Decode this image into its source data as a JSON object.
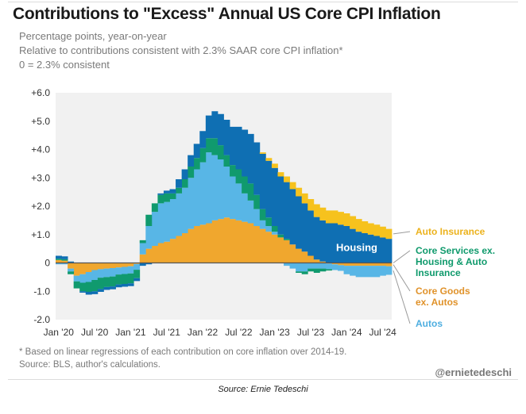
{
  "title": "Contributions to \"Excess\" Annual US Core CPI Inflation",
  "subtitle_lines": [
    "Percentage points, year-on-year",
    "Relative to contributions consistent with 2.3% SAAR core CPI inflation*",
    "0 = 2.3% consistent"
  ],
  "footnotes": [
    "* Based on linear regressions of each contribution on core inflation over 2014-19.",
    "Source: BLS, author's calculations."
  ],
  "handle": "@ernietedeschi",
  "source_caption": "Source: Ernie Tedeschi",
  "colors": {
    "plot_bg": "#f1f1f1",
    "housing": "#0f6fb3",
    "core_services": "#109a6e",
    "core_goods": "#f0a72e",
    "autos": "#58b6e6",
    "auto_insurance": "#f6c21d",
    "housing_label_text": "#ffffff",
    "core_goods_label_text": "#e0922a",
    "autos_label_text": "#4eaee0",
    "auto_insurance_label_text": "#ecb21c",
    "core_services_label_text": "#0f9a6c"
  },
  "chart_data": {
    "type": "area",
    "stacked": true,
    "x": [
      "2020-01",
      "2020-02",
      "2020-03",
      "2020-04",
      "2020-05",
      "2020-06",
      "2020-07",
      "2020-08",
      "2020-09",
      "2020-10",
      "2020-11",
      "2020-12",
      "2021-01",
      "2021-02",
      "2021-03",
      "2021-04",
      "2021-05",
      "2021-06",
      "2021-07",
      "2021-08",
      "2021-09",
      "2021-10",
      "2021-11",
      "2021-12",
      "2022-01",
      "2022-02",
      "2022-03",
      "2022-04",
      "2022-05",
      "2022-06",
      "2022-07",
      "2022-08",
      "2022-09",
      "2022-10",
      "2022-11",
      "2022-12",
      "2023-01",
      "2023-02",
      "2023-03",
      "2023-04",
      "2023-05",
      "2023-06",
      "2023-07",
      "2023-08",
      "2023-09",
      "2023-10",
      "2023-11",
      "2023-12",
      "2024-01",
      "2024-02",
      "2024-03",
      "2024-04",
      "2024-05",
      "2024-06",
      "2024-07",
      "2024-08"
    ],
    "xtick_labels": [
      "Jan '20",
      "Jul '20",
      "Jan '21",
      "Jul '21",
      "Jan '22",
      "Jul '22",
      "Jan '23",
      "Jul '23",
      "Jan '24",
      "Jul '24"
    ],
    "ylim": [
      -2.0,
      6.0
    ],
    "yticks": [
      -2.0,
      -1.0,
      0,
      1.0,
      2.0,
      3.0,
      4.0,
      5.0,
      6.0
    ],
    "ytick_labels": [
      "-2.0",
      "-1.0",
      "0",
      "+1.0",
      "+2.0",
      "+3.0",
      "+4.0",
      "+5.0",
      "+6.0"
    ],
    "grid": false,
    "legend": "right",
    "series": [
      {
        "key": "core_goods",
        "name": "Core Goods ex. Autos",
        "label_lines": [
          "Core Goods",
          "ex. Autos"
        ],
        "values": [
          0.1,
          0.08,
          -0.2,
          -0.45,
          -0.4,
          -0.32,
          -0.25,
          -0.22,
          -0.2,
          -0.18,
          -0.16,
          -0.14,
          -0.12,
          -0.04,
          0.3,
          0.5,
          0.6,
          0.7,
          0.75,
          0.85,
          0.95,
          1.05,
          1.2,
          1.3,
          1.35,
          1.4,
          1.5,
          1.55,
          1.6,
          1.55,
          1.5,
          1.45,
          1.4,
          1.3,
          1.2,
          1.1,
          1.0,
          0.9,
          0.8,
          0.65,
          0.5,
          0.4,
          0.25,
          0.12,
          0.05,
          -0.02,
          -0.05,
          -0.08,
          -0.1,
          -0.1,
          -0.1,
          -0.1,
          -0.1,
          -0.1,
          -0.1,
          -0.12
        ]
      },
      {
        "key": "autos",
        "name": "Autos",
        "label_lines": [
          "Autos"
        ],
        "values": [
          -0.05,
          -0.05,
          -0.1,
          -0.2,
          -0.3,
          -0.35,
          -0.35,
          -0.3,
          -0.3,
          -0.3,
          -0.25,
          -0.25,
          -0.25,
          -0.2,
          0.4,
          0.8,
          1.2,
          1.4,
          1.4,
          1.4,
          1.5,
          1.6,
          1.8,
          2.0,
          2.2,
          2.5,
          2.3,
          2.1,
          1.8,
          1.5,
          1.3,
          1.0,
          0.8,
          0.6,
          0.3,
          0.2,
          0.1,
          0.0,
          -0.1,
          -0.2,
          -0.3,
          -0.3,
          -0.2,
          -0.2,
          -0.2,
          -0.2,
          -0.2,
          -0.2,
          -0.3,
          -0.35,
          -0.4,
          -0.4,
          -0.4,
          -0.4,
          -0.35,
          -0.3
        ]
      },
      {
        "key": "core_services",
        "name": "Core Services ex. Housing & Auto Insurance",
        "label_lines": [
          "Core Services ex.",
          "Housing & Auto",
          "Insurance"
        ],
        "values": [
          0.05,
          0.05,
          -0.1,
          -0.25,
          -0.3,
          -0.35,
          -0.4,
          -0.4,
          -0.35,
          -0.35,
          -0.35,
          -0.35,
          -0.35,
          -0.3,
          0.1,
          0.4,
          0.3,
          0.3,
          0.3,
          0.2,
          0.2,
          0.3,
          0.4,
          0.4,
          0.5,
          0.5,
          0.6,
          0.5,
          0.4,
          0.4,
          0.5,
          0.6,
          0.6,
          0.5,
          0.4,
          0.3,
          0.2,
          0.1,
          0.05,
          0.0,
          -0.05,
          -0.1,
          -0.1,
          -0.15,
          -0.1,
          -0.05,
          0.0,
          0.0,
          0.0,
          0.0,
          0.0,
          0.0,
          0.0,
          0.0,
          0.0,
          0.0
        ]
      },
      {
        "key": "housing",
        "name": "Housing",
        "label_lines": [
          "Housing"
        ],
        "values": [
          0.1,
          0.1,
          0.05,
          0.0,
          -0.05,
          -0.1,
          -0.1,
          -0.1,
          -0.1,
          -0.1,
          -0.1,
          -0.1,
          -0.1,
          -0.1,
          -0.1,
          -0.05,
          0.0,
          0.05,
          0.1,
          0.15,
          0.3,
          0.35,
          0.4,
          0.5,
          0.6,
          0.8,
          0.95,
          1.1,
          1.25,
          1.35,
          1.5,
          1.65,
          1.75,
          1.85,
          1.95,
          2.0,
          2.05,
          2.05,
          2.0,
          1.95,
          1.85,
          1.7,
          1.6,
          1.5,
          1.45,
          1.4,
          1.4,
          1.35,
          1.3,
          1.2,
          1.1,
          1.05,
          1.0,
          0.95,
          0.9,
          0.85
        ]
      },
      {
        "key": "auto_insurance",
        "name": "Auto Insurance",
        "label_lines": [
          "Auto Insurance"
        ],
        "values": [
          0.0,
          0.0,
          0.0,
          0.0,
          0.0,
          0.0,
          0.0,
          0.0,
          0.0,
          0.0,
          0.0,
          0.0,
          0.0,
          0.0,
          0.0,
          0.0,
          0.0,
          0.0,
          0.0,
          0.0,
          0.0,
          0.0,
          0.0,
          0.0,
          0.0,
          0.0,
          0.0,
          0.0,
          0.0,
          0.0,
          0.0,
          0.0,
          0.0,
          0.0,
          0.05,
          0.1,
          0.15,
          0.15,
          0.2,
          0.25,
          0.3,
          0.35,
          0.4,
          0.45,
          0.45,
          0.45,
          0.45,
          0.45,
          0.45,
          0.45,
          0.45,
          0.42,
          0.4,
          0.4,
          0.38,
          0.35
        ]
      }
    ],
    "annotations": [
      {
        "text": "Housing",
        "series": "housing"
      }
    ]
  }
}
